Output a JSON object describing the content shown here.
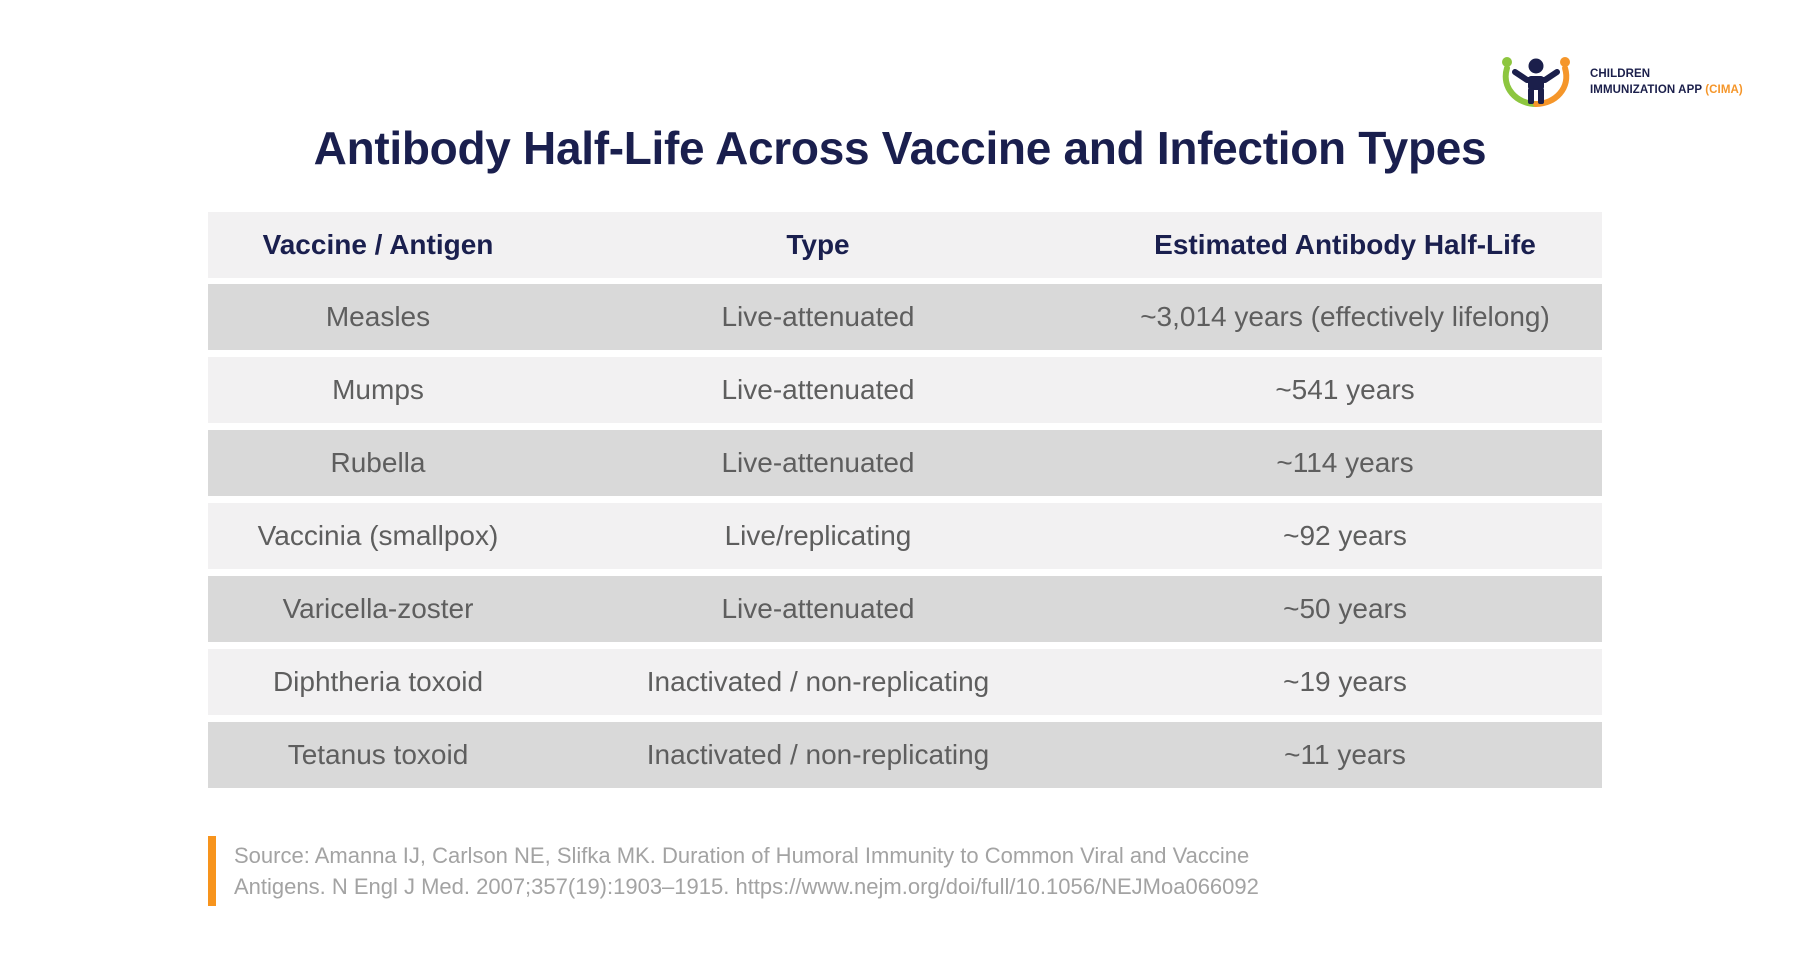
{
  "logo": {
    "line1": "CHILDREN",
    "line2": "IMMUNIZATION APP",
    "line2_accent": "(CIMA)",
    "icon": "children-immunization-logo-icon"
  },
  "title": "Antibody Half-Life Across Vaccine and Infection Types",
  "table": {
    "headers": [
      "Vaccine / Antigen",
      "Type",
      "Estimated Antibody Half-Life"
    ],
    "rows": [
      [
        "Measles",
        "Live-attenuated",
        "~3,014 years (effectively lifelong)"
      ],
      [
        "Mumps",
        "Live-attenuated",
        "~541 years"
      ],
      [
        "Rubella",
        "Live-attenuated",
        "~114 years"
      ],
      [
        "Vaccinia (smallpox)",
        "Live/replicating",
        "~92 years"
      ],
      [
        "Varicella-zoster",
        "Live-attenuated",
        "~50 years"
      ],
      [
        "Diphtheria toxoid",
        "Inactivated / non-replicating",
        "~19 years"
      ],
      [
        "Tetanus toxoid",
        "Inactivated / non-replicating",
        "~11 years"
      ]
    ]
  },
  "source": {
    "line1": "Source: Amanna IJ, Carlson NE, Slifka MK. Duration of Humoral Immunity to Common Viral and Vaccine",
    "line2": "Antigens. N Engl J Med. 2007;357(19):1903–1915. https://www.nejm.org/doi/full/10.1056/NEJMoa066092"
  },
  "colors": {
    "title": "#1a1f4e",
    "row_dark": "#d9d9d9",
    "row_light": "#f2f1f2",
    "accent_orange": "#f7941d",
    "logo_green": "#8dc63f"
  }
}
